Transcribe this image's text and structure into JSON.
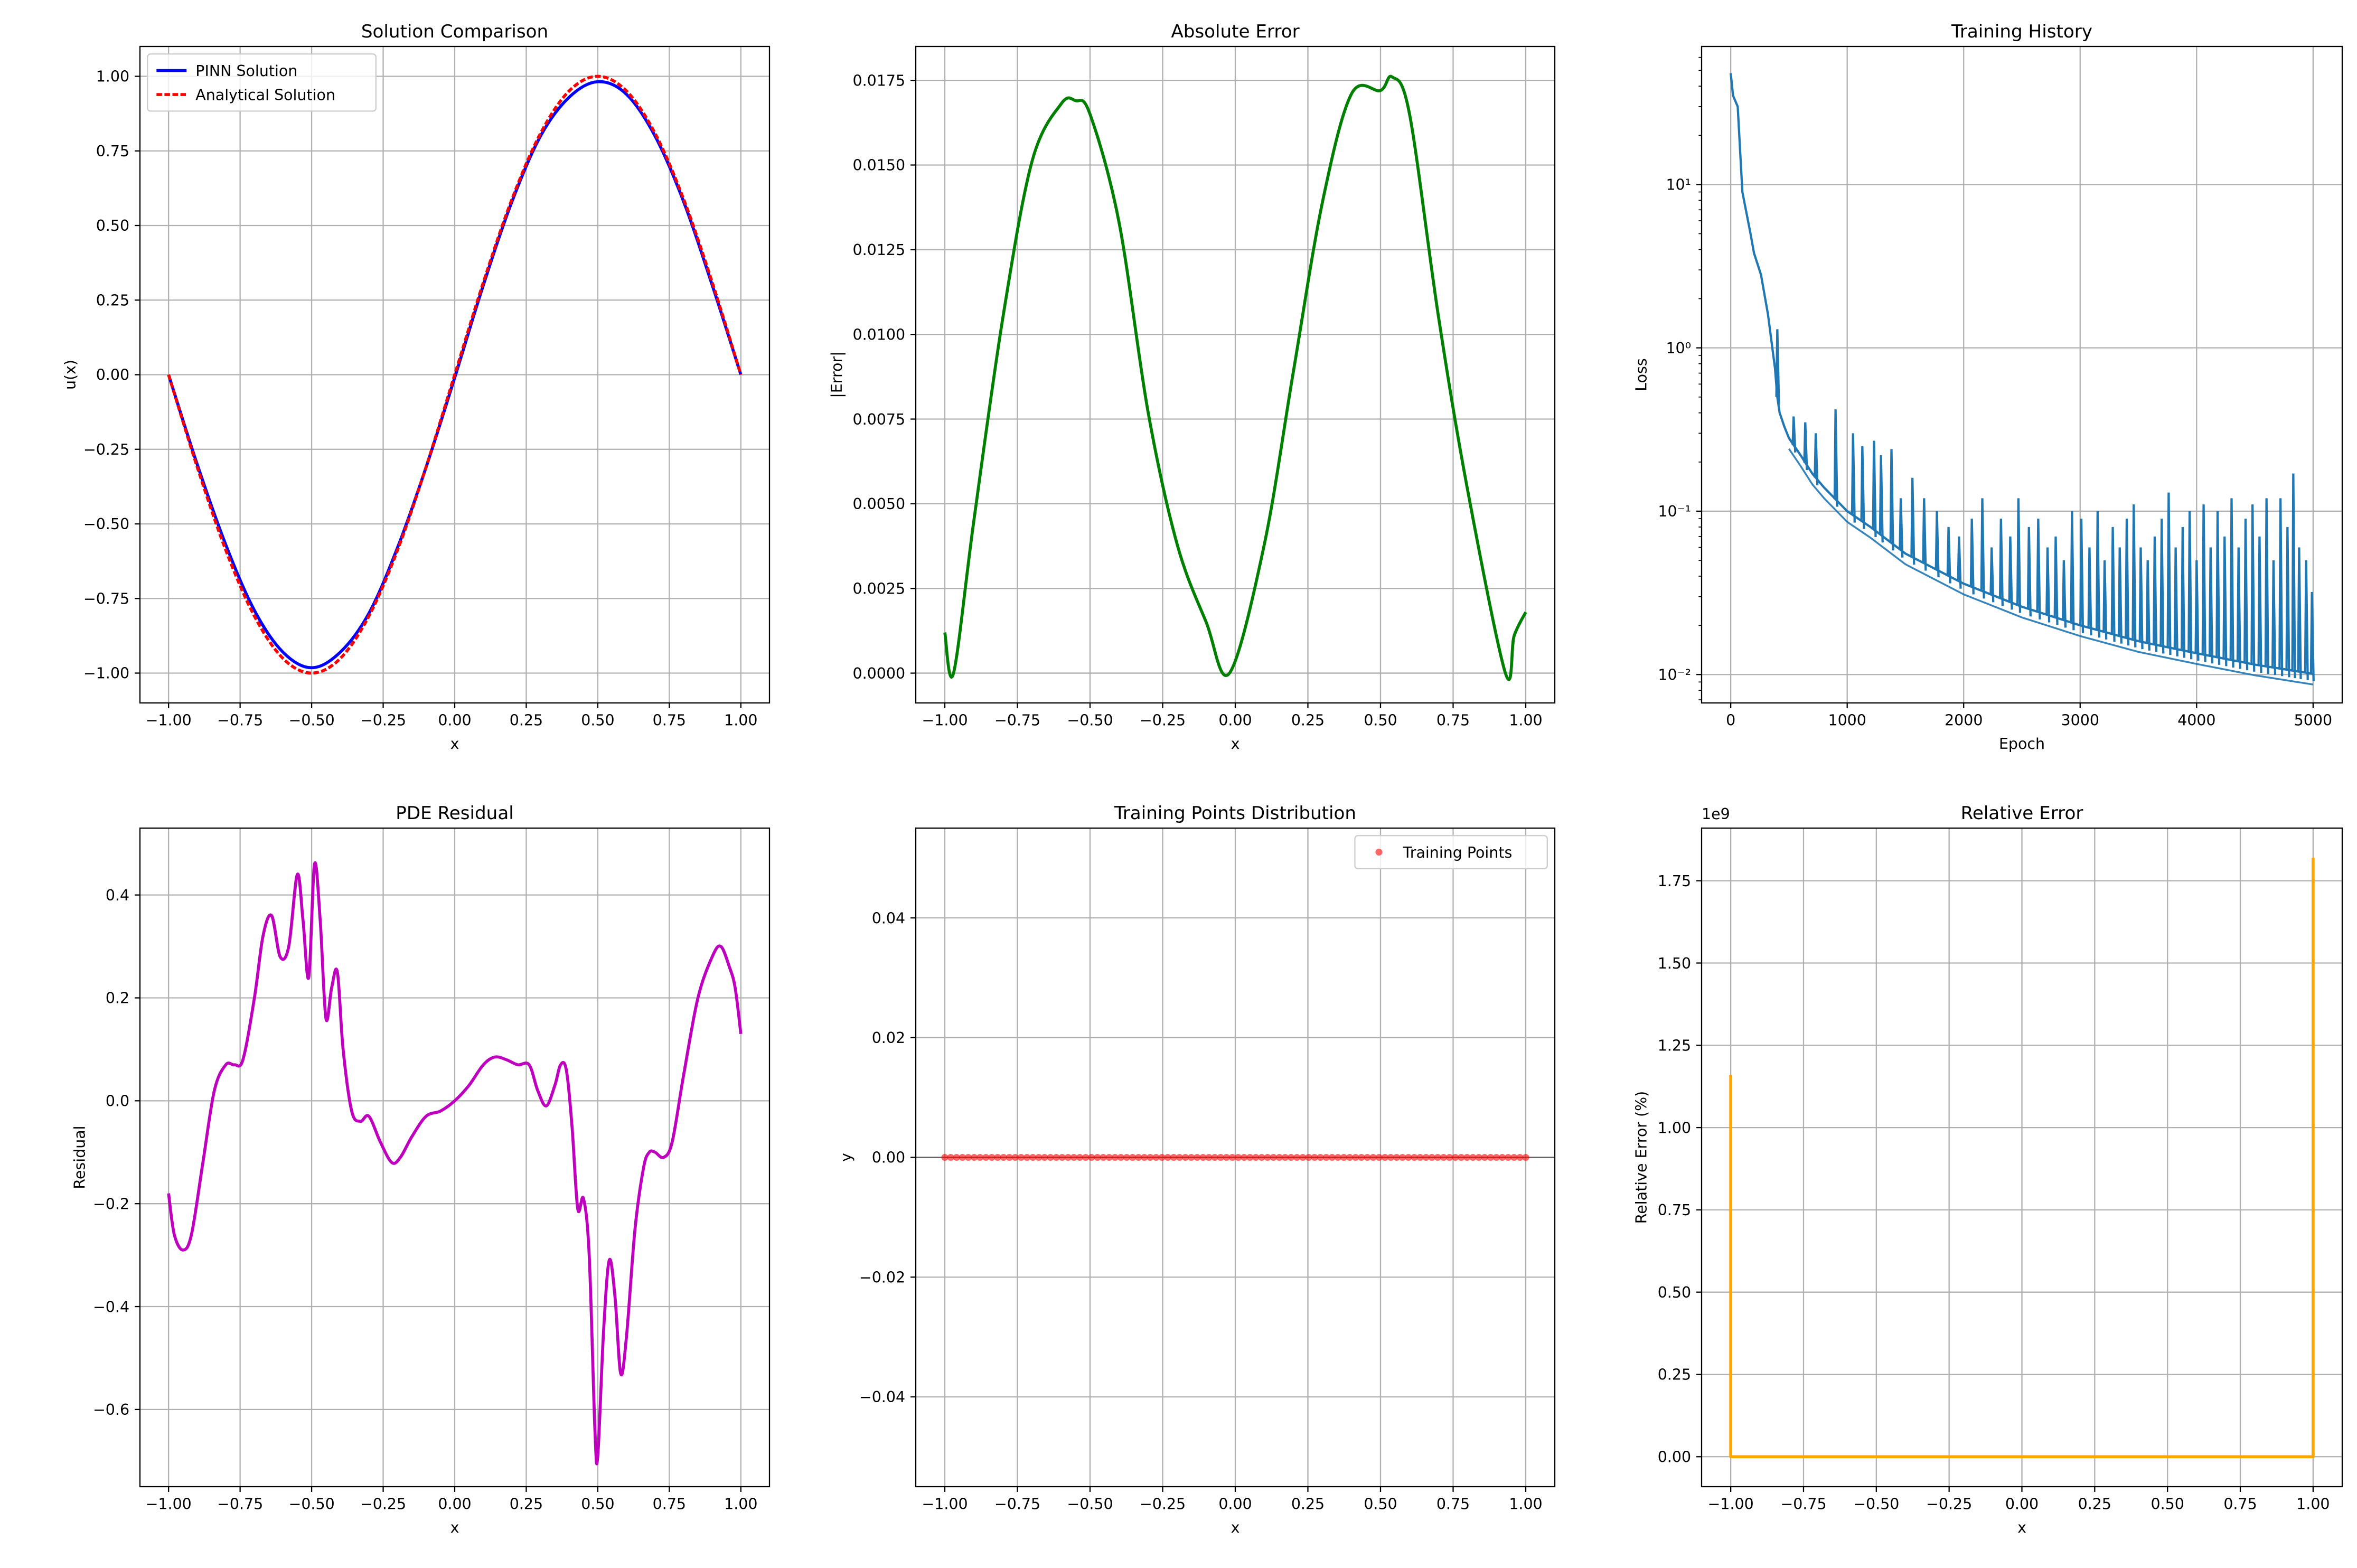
{
  "chart_data": [
    {
      "type": "line",
      "title": "Solution Comparison",
      "xlabel": "x",
      "ylabel": "u(x)",
      "xlim": [
        -1.1,
        1.1
      ],
      "ylim": [
        -1.1,
        1.1
      ],
      "xticks": [
        -1.0,
        -0.75,
        -0.5,
        -0.25,
        0.0,
        0.25,
        0.5,
        0.75,
        1.0
      ],
      "xtick_labels": [
        "−1.00",
        "−0.75",
        "−0.50",
        "−0.25",
        "0.00",
        "0.25",
        "0.50",
        "0.75",
        "1.00"
      ],
      "yticks": [
        -1.0,
        -0.75,
        -0.5,
        -0.25,
        0.0,
        0.25,
        0.5,
        0.75,
        1.0
      ],
      "ytick_labels": [
        "−1.00",
        "−0.75",
        "−0.50",
        "−0.25",
        "0.00",
        "0.25",
        "0.50",
        "0.75",
        "1.00"
      ],
      "grid": true,
      "legend": "top-left",
      "series": [
        {
          "name": "PINN Solution",
          "color": "#0000ff",
          "style": "solid",
          "x": [
            -1.0,
            -0.9,
            -0.8,
            -0.7,
            -0.6,
            -0.5,
            -0.4,
            -0.3,
            -0.2,
            -0.1,
            0.0,
            0.1,
            0.2,
            0.3,
            0.4,
            0.5,
            0.6,
            0.7,
            0.8,
            0.9,
            1.0
          ],
          "y": [
            0.0,
            -0.3,
            -0.57,
            -0.79,
            -0.93,
            -0.982,
            -0.93,
            -0.8,
            -0.58,
            -0.31,
            -0.01,
            0.3,
            0.58,
            0.8,
            0.93,
            0.982,
            0.94,
            0.8,
            0.58,
            0.3,
            0.0
          ]
        },
        {
          "name": "Analytical Solution",
          "color": "#ff0000",
          "style": "dashed",
          "x": [
            -1.0,
            -0.9,
            -0.8,
            -0.7,
            -0.6,
            -0.5,
            -0.4,
            -0.3,
            -0.2,
            -0.1,
            0.0,
            0.1,
            0.2,
            0.3,
            0.4,
            0.5,
            0.6,
            0.7,
            0.8,
            0.9,
            1.0
          ],
          "y": [
            0.0,
            -0.309,
            -0.588,
            -0.809,
            -0.951,
            -1.0,
            -0.951,
            -0.809,
            -0.588,
            -0.309,
            0.0,
            0.309,
            0.588,
            0.809,
            0.951,
            1.0,
            0.951,
            0.809,
            0.588,
            0.309,
            0.0
          ]
        }
      ]
    },
    {
      "type": "line",
      "title": "Absolute Error",
      "xlabel": "x",
      "ylabel": "|Error|",
      "xlim": [
        -1.1,
        1.1
      ],
      "ylim": [
        -0.00088,
        0.0185
      ],
      "xticks": [
        -1.0,
        -0.75,
        -0.5,
        -0.25,
        0.0,
        0.25,
        0.5,
        0.75,
        1.0
      ],
      "xtick_labels": [
        "−1.00",
        "−0.75",
        "−0.50",
        "−0.25",
        "0.00",
        "0.25",
        "0.50",
        "0.75",
        "1.00"
      ],
      "yticks": [
        0.0,
        0.0025,
        0.005,
        0.0075,
        0.01,
        0.0125,
        0.015,
        0.0175
      ],
      "ytick_labels": [
        "0.0000",
        "0.0025",
        "0.0050",
        "0.0075",
        "0.0100",
        "0.0125",
        "0.0150",
        "0.0175"
      ],
      "grid": true,
      "series": [
        {
          "color": "#008000",
          "x": [
            -1.0,
            -0.97,
            -0.9,
            -0.8,
            -0.7,
            -0.6,
            -0.55,
            -0.5,
            -0.4,
            -0.3,
            -0.2,
            -0.1,
            -0.02,
            0.1,
            0.2,
            0.3,
            0.4,
            0.5,
            0.54,
            0.6,
            0.7,
            0.8,
            0.93,
            0.96,
            1.0
          ],
          "y": [
            0.0012,
            0.0,
            0.0045,
            0.0105,
            0.0151,
            0.0168,
            0.0169,
            0.0165,
            0.0133,
            0.0077,
            0.0038,
            0.0015,
            0.0,
            0.0038,
            0.0089,
            0.0139,
            0.0171,
            0.0172,
            0.0176,
            0.0165,
            0.0105,
            0.0054,
            0.0,
            0.0011,
            0.0018
          ]
        }
      ]
    },
    {
      "type": "line",
      "title": "Training History",
      "xlabel": "Epoch",
      "ylabel": "Loss",
      "yscale": "log",
      "xlim": [
        -250,
        5250
      ],
      "ylim": [
        0.0067,
        70
      ],
      "xticks": [
        0,
        1000,
        2000,
        3000,
        4000,
        5000
      ],
      "xtick_labels": [
        "0",
        "1000",
        "2000",
        "3000",
        "4000",
        "5000"
      ],
      "yticks": [
        0.01,
        0.1,
        1,
        10
      ],
      "ytick_labels": [
        "10⁻²",
        "10⁻¹",
        "10⁰",
        "10¹"
      ],
      "grid": true,
      "series": [
        {
          "color": "#1f77b4",
          "x": [
            0,
            20,
            60,
            100,
            130,
            170,
            200,
            260,
            320,
            380,
            400,
            420,
            460,
            500,
            600,
            700,
            800,
            1000,
            1200,
            1500,
            2000,
            2500,
            3000,
            3500,
            4000,
            4500,
            5000
          ],
          "y": [
            48,
            35,
            30,
            9,
            7,
            5,
            3.8,
            2.8,
            1.6,
            0.75,
            0.5,
            0.4,
            0.33,
            0.28,
            0.22,
            0.17,
            0.14,
            0.1,
            0.08,
            0.055,
            0.036,
            0.026,
            0.02,
            0.016,
            0.0135,
            0.0115,
            0.0101
          ]
        }
      ],
      "spikes": [
        {
          "x": 400,
          "y": 1.3
        },
        {
          "x": 540,
          "y": 0.38
        },
        {
          "x": 640,
          "y": 0.35
        },
        {
          "x": 730,
          "y": 0.3
        },
        {
          "x": 900,
          "y": 0.42
        },
        {
          "x": 1050,
          "y": 0.3
        },
        {
          "x": 1130,
          "y": 0.25
        },
        {
          "x": 1230,
          "y": 0.27
        },
        {
          "x": 1290,
          "y": 0.22
        },
        {
          "x": 1380,
          "y": 0.24
        },
        {
          "x": 1460,
          "y": 0.12
        },
        {
          "x": 1560,
          "y": 0.16
        },
        {
          "x": 1660,
          "y": 0.12
        },
        {
          "x": 1770,
          "y": 0.1
        },
        {
          "x": 1870,
          "y": 0.08
        },
        {
          "x": 1960,
          "y": 0.07
        },
        {
          "x": 2070,
          "y": 0.09
        },
        {
          "x": 2160,
          "y": 0.12
        },
        {
          "x": 2240,
          "y": 0.06
        },
        {
          "x": 2320,
          "y": 0.09
        },
        {
          "x": 2400,
          "y": 0.07
        },
        {
          "x": 2470,
          "y": 0.12
        },
        {
          "x": 2560,
          "y": 0.08
        },
        {
          "x": 2640,
          "y": 0.09
        },
        {
          "x": 2720,
          "y": 0.06
        },
        {
          "x": 2790,
          "y": 0.07
        },
        {
          "x": 2860,
          "y": 0.05
        },
        {
          "x": 2930,
          "y": 0.1
        },
        {
          "x": 3010,
          "y": 0.09
        },
        {
          "x": 3080,
          "y": 0.06
        },
        {
          "x": 3150,
          "y": 0.1
        },
        {
          "x": 3210,
          "y": 0.05
        },
        {
          "x": 3280,
          "y": 0.08
        },
        {
          "x": 3340,
          "y": 0.06
        },
        {
          "x": 3400,
          "y": 0.09
        },
        {
          "x": 3460,
          "y": 0.11
        },
        {
          "x": 3520,
          "y": 0.06
        },
        {
          "x": 3580,
          "y": 0.05
        },
        {
          "x": 3640,
          "y": 0.07
        },
        {
          "x": 3700,
          "y": 0.09
        },
        {
          "x": 3760,
          "y": 0.13
        },
        {
          "x": 3820,
          "y": 0.06
        },
        {
          "x": 3880,
          "y": 0.08
        },
        {
          "x": 3940,
          "y": 0.1
        },
        {
          "x": 4000,
          "y": 0.05
        },
        {
          "x": 4060,
          "y": 0.11
        },
        {
          "x": 4120,
          "y": 0.06
        },
        {
          "x": 4180,
          "y": 0.1
        },
        {
          "x": 4240,
          "y": 0.07
        },
        {
          "x": 4300,
          "y": 0.12
        },
        {
          "x": 4360,
          "y": 0.06
        },
        {
          "x": 4420,
          "y": 0.09
        },
        {
          "x": 4480,
          "y": 0.11
        },
        {
          "x": 4540,
          "y": 0.07
        },
        {
          "x": 4600,
          "y": 0.12
        },
        {
          "x": 4660,
          "y": 0.05
        },
        {
          "x": 4720,
          "y": 0.12
        },
        {
          "x": 4780,
          "y": 0.08
        },
        {
          "x": 4830,
          "y": 0.17
        },
        {
          "x": 4880,
          "y": 0.06
        },
        {
          "x": 4940,
          "y": 0.05
        },
        {
          "x": 4990,
          "y": 0.032
        }
      ]
    },
    {
      "type": "line",
      "title": "PDE Residual",
      "xlabel": "x",
      "ylabel": "Residual",
      "xlim": [
        -1.1,
        1.1
      ],
      "ylim": [
        -0.75,
        0.53
      ],
      "xticks": [
        -1.0,
        -0.75,
        -0.5,
        -0.25,
        0.0,
        0.25,
        0.5,
        0.75,
        1.0
      ],
      "xtick_labels": [
        "−1.00",
        "−0.75",
        "−0.50",
        "−0.25",
        "0.00",
        "0.25",
        "0.50",
        "0.75",
        "1.00"
      ],
      "yticks": [
        -0.6,
        -0.4,
        -0.2,
        0.0,
        0.2,
        0.4
      ],
      "ytick_labels": [
        "−0.6",
        "−0.4",
        "−0.2",
        "0.0",
        "0.2",
        "0.4"
      ],
      "grid": true,
      "series": [
        {
          "color": "#bf00bf",
          "x": [
            -1.0,
            -0.98,
            -0.95,
            -0.92,
            -0.88,
            -0.84,
            -0.8,
            -0.77,
            -0.74,
            -0.7,
            -0.67,
            -0.64,
            -0.61,
            -0.58,
            -0.55,
            -0.53,
            -0.51,
            -0.49,
            -0.47,
            -0.45,
            -0.43,
            -0.41,
            -0.39,
            -0.36,
            -0.33,
            -0.3,
            -0.26,
            -0.22,
            -0.19,
            -0.15,
            -0.1,
            -0.05,
            0.0,
            0.05,
            0.1,
            0.14,
            0.18,
            0.22,
            0.26,
            0.29,
            0.32,
            0.35,
            0.37,
            0.39,
            0.41,
            0.43,
            0.45,
            0.47,
            0.49,
            0.5,
            0.52,
            0.54,
            0.56,
            0.58,
            0.6,
            0.63,
            0.66,
            0.68,
            0.7,
            0.73,
            0.76,
            0.8,
            0.85,
            0.9,
            0.93,
            0.96,
            0.98,
            1.0
          ],
          "y": [
            -0.18,
            -0.26,
            -0.29,
            -0.26,
            -0.12,
            0.02,
            0.07,
            0.07,
            0.08,
            0.2,
            0.32,
            0.36,
            0.28,
            0.3,
            0.44,
            0.35,
            0.24,
            0.46,
            0.35,
            0.16,
            0.22,
            0.25,
            0.1,
            -0.02,
            -0.04,
            -0.03,
            -0.08,
            -0.12,
            -0.11,
            -0.07,
            -0.03,
            -0.02,
            0.0,
            0.03,
            0.07,
            0.085,
            0.08,
            0.07,
            0.07,
            0.02,
            -0.01,
            0.03,
            0.07,
            0.06,
            -0.05,
            -0.21,
            -0.19,
            -0.3,
            -0.64,
            -0.69,
            -0.45,
            -0.31,
            -0.38,
            -0.53,
            -0.46,
            -0.25,
            -0.13,
            -0.1,
            -0.1,
            -0.11,
            -0.08,
            0.05,
            0.2,
            0.28,
            0.3,
            0.26,
            0.22,
            0.13
          ]
        }
      ]
    },
    {
      "type": "scatter",
      "title": "Training Points Distribution",
      "xlabel": "x",
      "ylabel": "y",
      "xlim": [
        -1.1,
        1.1
      ],
      "ylim": [
        -0.055,
        0.055
      ],
      "xticks": [
        -1.0,
        -0.75,
        -0.5,
        -0.25,
        0.0,
        0.25,
        0.5,
        0.75,
        1.0
      ],
      "xtick_labels": [
        "−1.00",
        "−0.75",
        "−0.50",
        "−0.25",
        "0.00",
        "0.25",
        "0.50",
        "0.75",
        "1.00"
      ],
      "yticks": [
        -0.04,
        -0.02,
        0.0,
        0.02,
        0.04
      ],
      "ytick_labels": [
        "−0.04",
        "−0.02",
        "0.00",
        "0.02",
        "0.04"
      ],
      "grid": true,
      "legend": "top-right",
      "hline": 0.0,
      "series": [
        {
          "name": "Training Points",
          "color": "#ff0000",
          "x_range": [
            -1.0,
            1.0
          ],
          "count": 100,
          "y": 0.0
        }
      ]
    },
    {
      "type": "line",
      "title": "Relative Error",
      "xlabel": "x",
      "ylabel": "Relative Error (%)",
      "y_multiplier": "1e9",
      "xlim": [
        -1.1,
        1.1
      ],
      "ylim": [
        -0.091,
        1.91
      ],
      "xticks": [
        -1.0,
        -0.75,
        -0.5,
        -0.25,
        0.0,
        0.25,
        0.5,
        0.75,
        1.0
      ],
      "xtick_labels": [
        "−1.00",
        "−0.75",
        "−0.50",
        "−0.25",
        "0.00",
        "0.25",
        "0.50",
        "0.75",
        "1.00"
      ],
      "yticks": [
        0.0,
        0.25,
        0.5,
        0.75,
        1.0,
        1.25,
        1.5,
        1.75
      ],
      "ytick_labels": [
        "0.00",
        "0.25",
        "0.50",
        "0.75",
        "1.00",
        "1.25",
        "1.50",
        "1.75"
      ],
      "grid": true,
      "series": [
        {
          "color": "#ffa500",
          "x": [
            -1.0,
            -1.0,
            -0.999,
            0.999,
            1.0,
            1.0
          ],
          "y": [
            1.16,
            0.0,
            0.0,
            0.0,
            0.0,
            1.82
          ]
        }
      ]
    }
  ]
}
